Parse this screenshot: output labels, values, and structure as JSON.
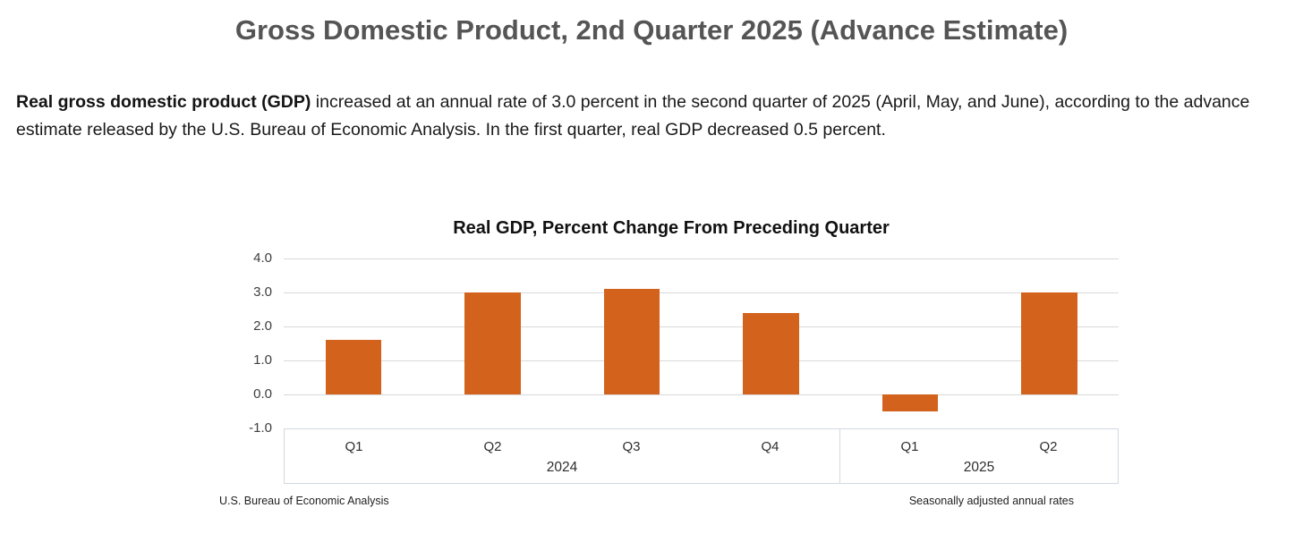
{
  "page": {
    "title": "Gross Domestic Product, 2nd Quarter 2025 (Advance Estimate)",
    "intro_bold": "Real gross domestic product (GDP)",
    "intro_rest": " increased at an annual rate of 3.0 percent in the second quarter of 2025 (April, May, and June), according to the advance estimate released by the U.S. Bureau of Economic Analysis. In the first quarter, real GDP decreased 0.5 percent."
  },
  "chart_data": {
    "type": "bar",
    "title": "Real GDP, Percent Change From Preceding Quarter",
    "categories": [
      "Q1",
      "Q2",
      "Q3",
      "Q4",
      "Q1",
      "Q2"
    ],
    "groups": [
      {
        "label": "2024",
        "span": 4
      },
      {
        "label": "2025",
        "span": 2
      }
    ],
    "values": [
      1.6,
      3.0,
      3.1,
      2.4,
      -0.5,
      3.0
    ],
    "ylim": [
      -1.0,
      4.0
    ],
    "ytick_labels": [
      "4.0",
      "3.0",
      "2.0",
      "1.0",
      "0.0",
      "-1.0"
    ],
    "xlabel": "",
    "ylabel": "",
    "grid": true,
    "legend": "none",
    "bar_color": "#d3621d",
    "source_note": "U.S. Bureau of Economic Analysis",
    "adjustment_note": "Seasonally adjusted annual rates"
  }
}
